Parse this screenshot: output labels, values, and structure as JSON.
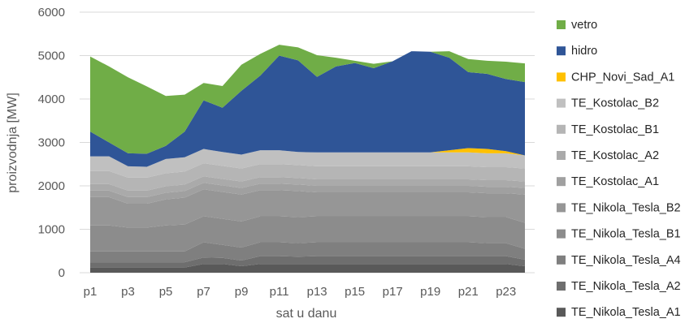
{
  "chart_data": {
    "type": "area",
    "stacked": true,
    "title": "",
    "xlabel": "sat u danu",
    "ylabel": "proizvodnja [MW]",
    "ylim": [
      0,
      6000
    ],
    "yticks": [
      "0",
      "1000",
      "2000",
      "3000",
      "4000",
      "5000",
      "6000"
    ],
    "grid": true,
    "legend_position": "right",
    "categories": [
      "p1",
      "p2",
      "p3",
      "p4",
      "p5",
      "p6",
      "p7",
      "p8",
      "p9",
      "p10",
      "p11",
      "p12",
      "p13",
      "p14",
      "p15",
      "p16",
      "p17",
      "p18",
      "p19",
      "p20",
      "p21",
      "p22",
      "p23",
      "p24"
    ],
    "xtick_labels": [
      "p1",
      "p3",
      "p5",
      "p7",
      "p9",
      "p11",
      "p13",
      "p15",
      "p17",
      "p19",
      "p21",
      "p23"
    ],
    "series": [
      {
        "name": "TE_Nikola_Tesla_A1",
        "color": "#595959",
        "values": [
          120,
          120,
          120,
          120,
          120,
          120,
          200,
          200,
          150,
          200,
          200,
          200,
          200,
          200,
          200,
          200,
          200,
          200,
          200,
          200,
          200,
          200,
          200,
          150
        ]
      },
      {
        "name": "TE_Nikola_Tesla_A2",
        "color": "#6e6e6e",
        "values": [
          120,
          120,
          120,
          120,
          120,
          120,
          150,
          140,
          130,
          180,
          180,
          170,
          180,
          180,
          180,
          180,
          180,
          180,
          180,
          180,
          180,
          180,
          180,
          150
        ]
      },
      {
        "name": "TE_Nikola_Tesla_A4",
        "color": "#7f7f7f",
        "values": [
          250,
          250,
          250,
          250,
          250,
          250,
          350,
          300,
          300,
          320,
          320,
          310,
          320,
          320,
          320,
          320,
          320,
          320,
          320,
          320,
          320,
          300,
          300,
          250
        ]
      },
      {
        "name": "TE_Nikola_Tesla_B1",
        "color": "#8c8c8c",
        "values": [
          600,
          600,
          550,
          550,
          600,
          620,
          600,
          600,
          600,
          600,
          600,
          600,
          600,
          600,
          600,
          600,
          600,
          600,
          600,
          600,
          600,
          600,
          600,
          600
        ]
      },
      {
        "name": "TE_Nikola_Tesla_B2",
        "color": "#969696",
        "values": [
          650,
          650,
          550,
          550,
          600,
          620,
          620,
          620,
          620,
          600,
          600,
          600,
          550,
          550,
          550,
          550,
          550,
          550,
          550,
          550,
          550,
          550,
          550,
          650
        ]
      },
      {
        "name": "TE_Kostolac_A1",
        "color": "#a0a0a0",
        "values": [
          150,
          150,
          150,
          150,
          150,
          150,
          150,
          150,
          150,
          150,
          150,
          150,
          150,
          150,
          150,
          150,
          150,
          150,
          150,
          150,
          150,
          150,
          150,
          150
        ]
      },
      {
        "name": "TE_Kostolac_A2",
        "color": "#aaaaaa",
        "values": [
          150,
          150,
          150,
          150,
          150,
          150,
          150,
          150,
          150,
          150,
          150,
          150,
          150,
          150,
          150,
          150,
          150,
          150,
          150,
          150,
          150,
          150,
          150,
          150
        ]
      },
      {
        "name": "TE_Kostolac_B1",
        "color": "#b5b5b5",
        "values": [
          300,
          300,
          300,
          300,
          300,
          300,
          300,
          300,
          300,
          300,
          300,
          300,
          300,
          300,
          300,
          300,
          300,
          300,
          300,
          300,
          300,
          300,
          300,
          300
        ]
      },
      {
        "name": "TE_Kostolac_B2",
        "color": "#c0c0c0",
        "values": [
          340,
          340,
          260,
          250,
          330,
          330,
          330,
          320,
          320,
          320,
          320,
          300,
          320,
          320,
          320,
          320,
          320,
          320,
          320,
          320,
          320,
          320,
          320,
          300
        ]
      },
      {
        "name": "CHP_Novi_Sad_A1",
        "color": "#ffc000",
        "values": [
          0,
          0,
          0,
          0,
          0,
          0,
          0,
          0,
          0,
          0,
          0,
          0,
          0,
          0,
          0,
          0,
          0,
          0,
          0,
          50,
          100,
          100,
          50,
          0
        ]
      },
      {
        "name": "hidro",
        "color": "#2f5597",
        "values": [
          570,
          320,
          300,
          300,
          300,
          590,
          1120,
          1020,
          1470,
          1720,
          2180,
          2110,
          1740,
          1980,
          2060,
          1940,
          2100,
          2330,
          2320,
          2130,
          1750,
          1730,
          1660,
          1690
        ]
      },
      {
        "name": "vetro",
        "color": "#70ad47",
        "values": [
          1730,
          1750,
          1750,
          1550,
          1150,
          850,
          400,
          500,
          600,
          500,
          250,
          300,
          500,
          200,
          50,
          100,
          0,
          0,
          0,
          150,
          300,
          300,
          400,
          430
        ]
      }
    ]
  }
}
